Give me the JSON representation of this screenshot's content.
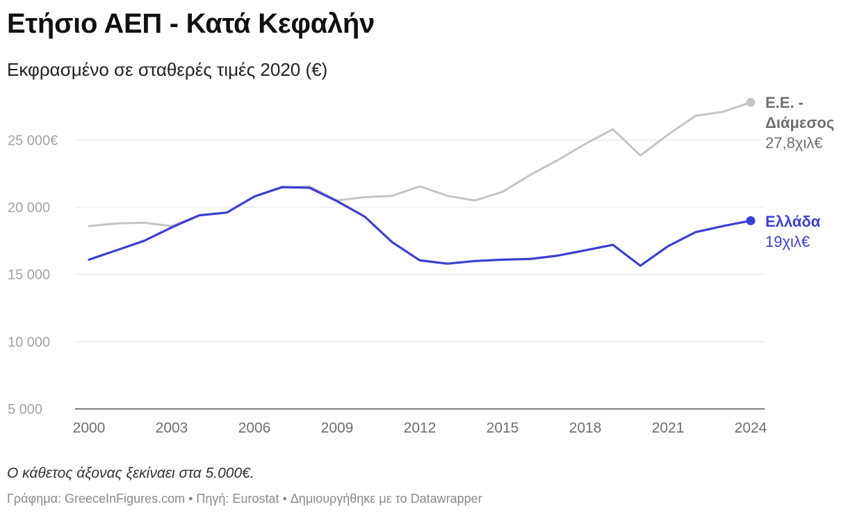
{
  "title": "Ετήσιο ΑΕΠ - Κατά Κεφαλήν",
  "subtitle": "Εκφρασμένο σε σταθερές τιμές 2020 (€)",
  "note": "Ο κάθετος άξονας ξεκίναει στα 5.000€.",
  "footer": {
    "credit": "Γράφημα: GreeceInFigures.com",
    "separator": " • ",
    "source": "Πηγή: Eurostat",
    "made_with": "Δημιουργήθηκε με το Datawrapper"
  },
  "chart_data": {
    "type": "line",
    "title": "Ετήσιο ΑΕΠ - Κατά Κεφαλήν",
    "subtitle": "Εκφρασμένο σε σταθερές τιμές 2020 (€)",
    "xlabel": "",
    "ylabel": "",
    "xlim": [
      2000,
      2024
    ],
    "ylim": [
      5000,
      27800
    ],
    "grid": true,
    "x": [
      2000,
      2001,
      2002,
      2003,
      2004,
      2005,
      2006,
      2007,
      2008,
      2009,
      2010,
      2011,
      2012,
      2013,
      2014,
      2015,
      2016,
      2017,
      2018,
      2019,
      2020,
      2021,
      2022,
      2023,
      2024
    ],
    "y_ticks": [
      {
        "value": 5000,
        "label": "5 000"
      },
      {
        "value": 10000,
        "label": "10 000"
      },
      {
        "value": 15000,
        "label": "15 000"
      },
      {
        "value": 20000,
        "label": "20 000"
      },
      {
        "value": 25000,
        "label": "25 000€"
      }
    ],
    "x_ticks": [
      {
        "value": 2000,
        "label": "2000"
      },
      {
        "value": 2003,
        "label": "2003"
      },
      {
        "value": 2006,
        "label": "2006"
      },
      {
        "value": 2009,
        "label": "2009"
      },
      {
        "value": 2012,
        "label": "2012"
      },
      {
        "value": 2015,
        "label": "2015"
      },
      {
        "value": 2018,
        "label": "2018"
      },
      {
        "value": 2021,
        "label": "2021"
      },
      {
        "value": 2024,
        "label": "2024"
      }
    ],
    "series": [
      {
        "name": "Ε.Ε. - Διάμεσος",
        "name_lines": [
          "Ε.Ε. -",
          "Διάμεσος"
        ],
        "end_label": "27,8χιλ€",
        "color": "#c4c4c4",
        "label_color": "#6f6f6f",
        "values": [
          18600,
          18800,
          18850,
          18600,
          19400,
          19600,
          20800,
          21450,
          21550,
          20500,
          20750,
          20850,
          21550,
          20850,
          20500,
          21150,
          22400,
          23500,
          24700,
          25800,
          23850,
          25400,
          26800,
          27100,
          27800
        ]
      },
      {
        "name": "Ελλάδα",
        "name_lines": [
          "Ελλάδα"
        ],
        "end_label": "19χιλ€",
        "color": "#3a3fd4",
        "label_color": "#3a3fd4",
        "values": [
          16100,
          16800,
          17500,
          18500,
          19400,
          19600,
          20800,
          21500,
          21450,
          20450,
          19300,
          17400,
          16050,
          15800,
          16000,
          16100,
          16150,
          16400,
          16800,
          17200,
          15650,
          17100,
          18150,
          18600,
          19000
        ]
      }
    ]
  }
}
